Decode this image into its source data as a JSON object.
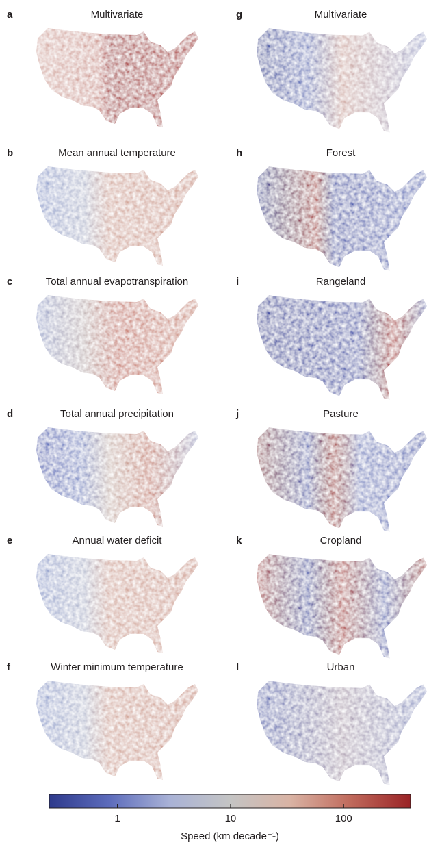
{
  "panels": [
    {
      "letter": "a",
      "title": "Multivariate"
    },
    {
      "letter": "b",
      "title": "Mean annual temperature"
    },
    {
      "letter": "c",
      "title": "Total annual evapotranspiration"
    },
    {
      "letter": "d",
      "title": "Total annual precipitation"
    },
    {
      "letter": "e",
      "title": "Annual water deficit"
    },
    {
      "letter": "f",
      "title": "Winter minimum temperature"
    },
    {
      "letter": "g",
      "title": "Multivariate"
    },
    {
      "letter": "h",
      "title": "Forest"
    },
    {
      "letter": "i",
      "title": "Rangeland"
    },
    {
      "letter": "j",
      "title": "Pasture"
    },
    {
      "letter": "k",
      "title": "Cropland"
    },
    {
      "letter": "l",
      "title": "Urban"
    }
  ],
  "colorbar": {
    "label": "Speed (km decade⁻¹)",
    "log": true,
    "lim": [
      0.25,
      390
    ],
    "ticks": [
      1,
      10,
      100
    ],
    "colors": [
      "#2e3a8c",
      "#5d6cbc",
      "#a9b2d6",
      "#c4c4c4",
      "#d9b3a4",
      "#c06a5c",
      "#9a2326"
    ]
  }
}
